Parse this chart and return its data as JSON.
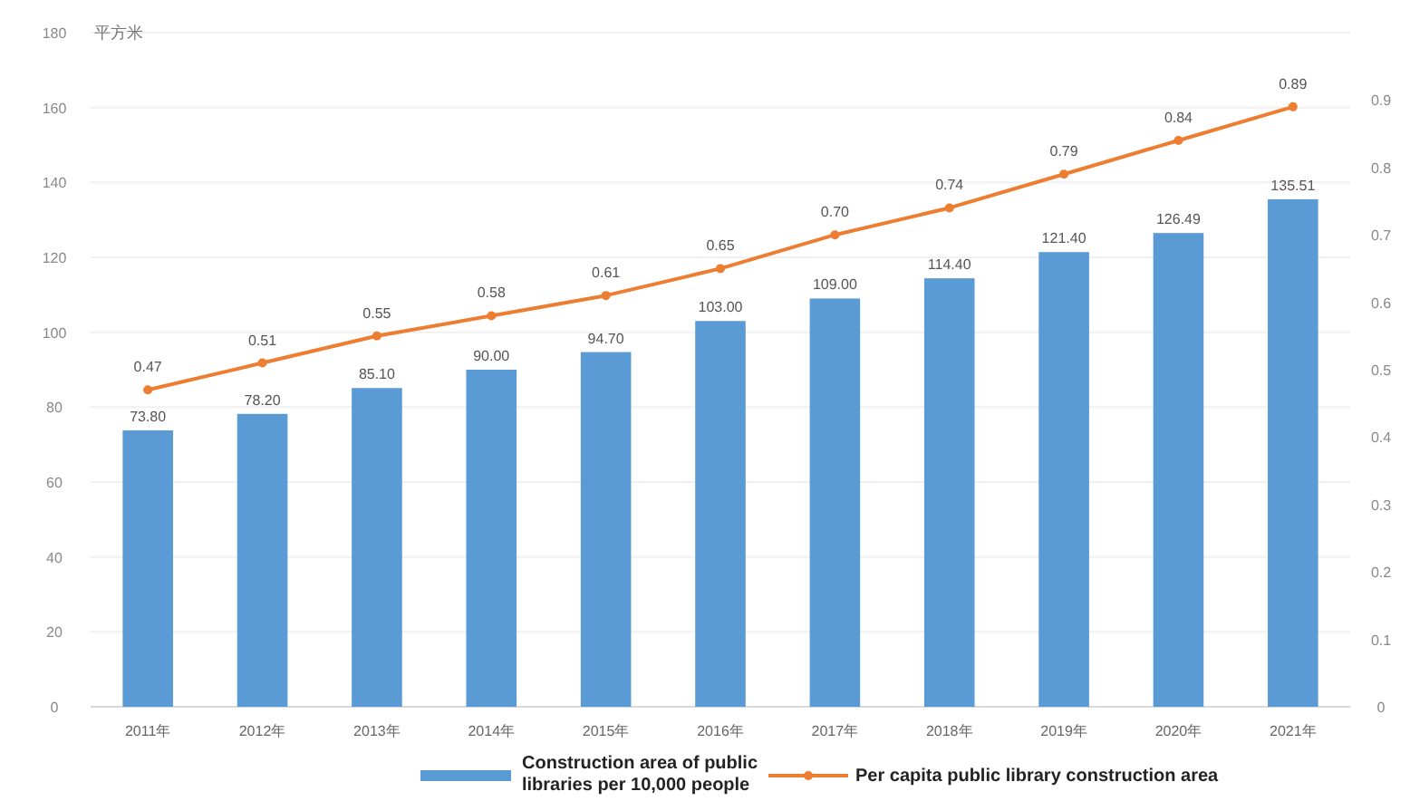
{
  "chart_data": {
    "type": "bar",
    "ylabel": "平方米",
    "categories": [
      "2011年",
      "2012年",
      "2013年",
      "2014年",
      "2015年",
      "2016年",
      "2017年",
      "2018年",
      "2019年",
      "2020年",
      "2021年"
    ],
    "series": [
      {
        "name": "Construction area of public libraries per 10,000 people",
        "color": "#5b9bd5",
        "values": [
          73.8,
          78.2,
          85.1,
          90,
          94.7,
          103,
          109,
          114.4,
          121.4,
          126.49,
          135.51
        ],
        "value_labels": [
          "73.80",
          "78.20",
          "85.10",
          "90.00",
          "94.70",
          "103.00",
          "109.00",
          "114.40",
          "121.40",
          "126.49",
          "135.51"
        ]
      },
      {
        "name": "Per capita public library construction area",
        "type": "line",
        "axis": "y2",
        "color": "#ed7d31",
        "marker": "circle",
        "values": [
          0.47,
          0.51,
          0.55,
          0.58,
          0.61,
          0.65,
          0.7,
          0.74,
          0.79,
          0.84,
          0.89
        ],
        "value_labels": [
          "0.47",
          "0.51",
          "0.55",
          "0.58",
          "0.61",
          "0.65",
          "0.70",
          "0.74",
          "0.79",
          "0.84",
          "0.89"
        ]
      }
    ],
    "ylim": [
      0,
      180
    ],
    "yticks": [
      0,
      20,
      40,
      60,
      80,
      100,
      120,
      140,
      160,
      180
    ],
    "y2lim": [
      0,
      1.0
    ],
    "y2ticks": [
      0,
      0.1,
      0.2,
      0.3,
      0.4,
      0.5,
      0.6,
      0.7,
      0.8,
      0.9
    ],
    "grid": "y",
    "legend": "bottom"
  }
}
